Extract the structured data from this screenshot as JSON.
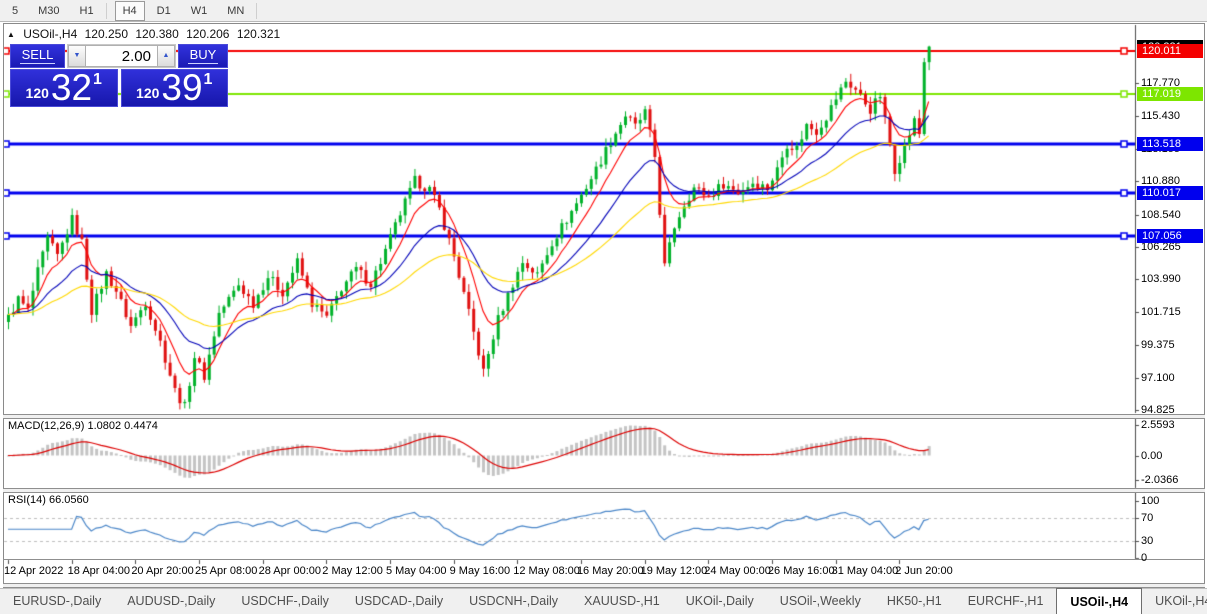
{
  "toolbar": {
    "timeframes": [
      "5",
      "M30",
      "H1",
      "H4",
      "D1",
      "W1",
      "MN"
    ],
    "active_timeframe": "H4"
  },
  "chart": {
    "collapse_arrow": "▲",
    "symbol": "USOil-,H4",
    "open": "120.250",
    "high": "120.380",
    "low": "120.206",
    "close": "120.321",
    "trade_panel": {
      "sell_label": "SELL",
      "buy_label": "BUY",
      "volume": "2.00",
      "spin_down_glyph": "▼",
      "spin_up_glyph": "▲",
      "sell_price_small": "120",
      "sell_price_big": "32",
      "sell_price_sup": "1",
      "buy_price_small": "120",
      "buy_price_big": "39",
      "buy_price_sup": "1"
    },
    "last_price_badge": {
      "label": "120.321",
      "value": 120.321,
      "color": "#000000"
    },
    "levels": [
      {
        "label": "120.011",
        "value": 120.011,
        "color": "#f40000",
        "width": 2
      },
      {
        "label": "117.019",
        "value": 117.019,
        "color": "#7de600",
        "width": 2
      },
      {
        "label": "113.518",
        "value": 113.518,
        "color": "#0000ee",
        "width": 3
      },
      {
        "label": "110.017",
        "value": 110.017,
        "color": "#0000ee",
        "width": 3
      },
      {
        "label": "107.056",
        "value": 107.056,
        "color": "#0000ee",
        "width": 3
      }
    ],
    "y_axis_ticks": [
      "117.770",
      "115.430",
      "113.155",
      "110.880",
      "108.540",
      "106.265",
      "103.990",
      "101.715",
      "99.375",
      "97.100",
      "94.825"
    ],
    "x_axis_labels": [
      "12 Apr 2022",
      "18 Apr 04:00",
      "20 Apr 20:00",
      "25 Apr 08:00",
      "28 Apr 00:00",
      "2 May 12:00",
      "5 May 04:00",
      "9 May 16:00",
      "12 May 08:00",
      "16 May 20:00",
      "19 May 12:00",
      "24 May 00:00",
      "26 May 16:00",
      "31 May 04:00",
      "2 Jun 20:00"
    ]
  },
  "macd_panel": {
    "label": "MACD(12,26,9) 1.0802 0.4474",
    "ticks": [
      {
        "label": "2.5593",
        "value": 2.5593
      },
      {
        "label": "0.00",
        "value": 0
      },
      {
        "label": "-2.0366",
        "value": -2.0366
      }
    ]
  },
  "rsi_panel": {
    "label": "RSI(14) 66.0560",
    "ticks": [
      {
        "label": "100",
        "value": 100
      },
      {
        "label": "70",
        "value": 70
      },
      {
        "label": "30",
        "value": 30
      },
      {
        "label": "0",
        "value": 0
      }
    ],
    "dashed_levels": [
      70,
      30
    ]
  },
  "tab_bar": {
    "tabs": [
      "EURUSD-,Daily",
      "AUDUSD-,Daily",
      "USDCHF-,Daily",
      "USDCAD-,Daily",
      "USDCNH-,Daily",
      "XAUUSD-,H1",
      "UKOil-,Daily",
      "USOil-,Weekly",
      "HK50-,H1",
      "EURCHF-,H1",
      "USOil-,H4",
      "UKOil-,H4"
    ],
    "active_tab": "USOil-,H4",
    "scroll_left_glyph": "◄",
    "scroll_right_glyph": "►"
  },
  "chart_data": {
    "type": "candlestick",
    "symbol": "USOil-,H4",
    "timeframe": "H4",
    "num_candles": 189,
    "last_close": 120.321,
    "last_high": 120.38,
    "visible_price_range": [
      94.0,
      121.3
    ],
    "price_waypoints": [
      [
        0,
        101.3
      ],
      [
        2,
        102.6
      ],
      [
        4,
        101.8
      ],
      [
        6,
        104.5
      ],
      [
        8,
        106.8
      ],
      [
        10,
        105.6
      ],
      [
        13,
        108.2
      ],
      [
        15,
        106.6
      ],
      [
        17,
        101.8
      ],
      [
        20,
        104.4
      ],
      [
        22,
        103.2
      ],
      [
        25,
        100.7
      ],
      [
        28,
        102.4
      ],
      [
        31,
        99.6
      ],
      [
        34,
        96.2
      ],
      [
        36,
        95.05
      ],
      [
        38,
        98.6
      ],
      [
        40,
        97.2
      ],
      [
        43,
        101.6
      ],
      [
        47,
        103.6
      ],
      [
        50,
        102.3
      ],
      [
        53,
        104.2
      ],
      [
        56,
        103.1
      ],
      [
        59,
        105.2
      ],
      [
        62,
        102.3
      ],
      [
        65,
        101.3
      ],
      [
        68,
        103.4
      ],
      [
        71,
        104.7
      ],
      [
        74,
        103.7
      ],
      [
        77,
        106.0
      ],
      [
        80,
        108.6
      ],
      [
        83,
        110.9
      ],
      [
        86,
        110.3
      ],
      [
        88,
        108.9
      ],
      [
        91,
        105.6
      ],
      [
        94,
        101.6
      ],
      [
        97,
        97.5
      ],
      [
        100,
        101.2
      ],
      [
        103,
        103.7
      ],
      [
        105,
        105.2
      ],
      [
        108,
        104.3
      ],
      [
        111,
        106.6
      ],
      [
        114,
        108.2
      ],
      [
        117,
        109.9
      ],
      [
        120,
        111.7
      ],
      [
        123,
        113.7
      ],
      [
        126,
        115.5
      ],
      [
        128,
        114.7
      ],
      [
        130,
        115.7
      ],
      [
        132,
        112.6
      ],
      [
        134,
        104.9
      ],
      [
        136,
        107.7
      ],
      [
        138,
        109.3
      ],
      [
        140,
        110.4
      ],
      [
        143,
        109.8
      ],
      [
        146,
        110.7
      ],
      [
        149,
        110.1
      ],
      [
        152,
        110.8
      ],
      [
        155,
        110.4
      ],
      [
        157,
        111.7
      ],
      [
        159,
        113.5
      ],
      [
        161,
        113.2
      ],
      [
        163,
        114.8
      ],
      [
        165,
        114.4
      ],
      [
        167,
        115.4
      ],
      [
        169,
        116.7
      ],
      [
        171,
        117.9
      ],
      [
        173,
        117.3
      ],
      [
        176,
        115.9
      ],
      [
        178,
        116.9
      ],
      [
        181,
        111.7
      ],
      [
        183,
        113.3
      ],
      [
        185,
        115.1
      ],
      [
        186,
        114.2
      ],
      [
        187,
        119.3
      ],
      [
        188,
        120.32
      ]
    ],
    "horizontal_levels": [
      120.011,
      117.019,
      113.518,
      110.017,
      107.056
    ],
    "candle_up_color": "#00b22a",
    "candle_down_color": "#e01010",
    "moving_averages": [
      {
        "color": "#ff0000",
        "period": 8
      },
      {
        "color": "#0000b8",
        "period": 20
      },
      {
        "color": "#ffd800",
        "period": 45
      }
    ],
    "macd": {
      "fast": 12,
      "slow": 26,
      "signal": 9,
      "histogram_color": "#c4c4c4",
      "signal_color": "#dd0000",
      "axis_values": [
        2.5593,
        0,
        -2.0366
      ]
    },
    "rsi": {
      "period": 14,
      "color": "#4a86c8",
      "levels": [
        70,
        30
      ],
      "last_value": 66.056
    }
  }
}
